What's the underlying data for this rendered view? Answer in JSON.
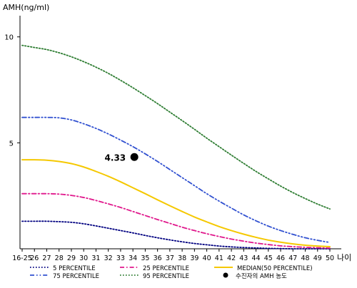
{
  "chart_data": {
    "type": "line",
    "ylabel": "AMH(ng/ml)",
    "xlabel": "나이",
    "x": [
      "16-25",
      "26",
      "27",
      "28",
      "29",
      "30",
      "31",
      "32",
      "33",
      "34",
      "35",
      "36",
      "37",
      "38",
      "39",
      "40",
      "41",
      "42",
      "43",
      "44",
      "45",
      "46",
      "47",
      "48",
      "49",
      "50"
    ],
    "y_ticks": [
      5,
      10
    ],
    "ylim": [
      0,
      11
    ],
    "grid": false,
    "legend_position": "bottom",
    "series": [
      {
        "name": "5 PERCENTILE",
        "color": "#000080",
        "dash": "dotted",
        "values": [
          1.3,
          1.3,
          1.3,
          1.28,
          1.25,
          1.18,
          1.08,
          0.97,
          0.86,
          0.75,
          0.63,
          0.52,
          0.42,
          0.33,
          0.25,
          0.19,
          0.13,
          0.09,
          0.06,
          0.04,
          0.02,
          0.01,
          0.0,
          0.0,
          0.0,
          0.0
        ]
      },
      {
        "name": "25 PERCENTILE",
        "color": "#e0188c",
        "dash": "dashdot",
        "values": [
          2.6,
          2.6,
          2.6,
          2.58,
          2.52,
          2.42,
          2.28,
          2.12,
          1.95,
          1.76,
          1.57,
          1.38,
          1.2,
          1.02,
          0.86,
          0.71,
          0.58,
          0.46,
          0.36,
          0.27,
          0.2,
          0.14,
          0.1,
          0.07,
          0.05,
          0.03
        ]
      },
      {
        "name": "MEDIAN(50 PERCENTILE)",
        "color": "#f5c800",
        "dash": "solid",
        "values": [
          4.2,
          4.2,
          4.18,
          4.12,
          4.02,
          3.86,
          3.65,
          3.42,
          3.16,
          2.88,
          2.6,
          2.31,
          2.03,
          1.76,
          1.5,
          1.27,
          1.05,
          0.86,
          0.69,
          0.54,
          0.41,
          0.31,
          0.23,
          0.17,
          0.13,
          0.1
        ]
      },
      {
        "name": "75 PERCENTILE",
        "color": "#3050d0",
        "dash": "dashdotdot",
        "values": [
          6.2,
          6.2,
          6.2,
          6.18,
          6.08,
          5.9,
          5.68,
          5.42,
          5.13,
          4.82,
          4.48,
          4.12,
          3.74,
          3.36,
          2.98,
          2.6,
          2.25,
          1.92,
          1.6,
          1.32,
          1.07,
          0.86,
          0.68,
          0.52,
          0.4,
          0.3
        ]
      },
      {
        "name": "95 PERCENTILE",
        "color": "#2e7d32",
        "dash": "dotted",
        "values": [
          9.6,
          9.5,
          9.4,
          9.25,
          9.06,
          8.83,
          8.57,
          8.28,
          7.95,
          7.6,
          7.23,
          6.85,
          6.45,
          6.05,
          5.64,
          5.22,
          4.82,
          4.42,
          4.03,
          3.65,
          3.3,
          2.96,
          2.65,
          2.37,
          2.11,
          1.88
        ]
      }
    ],
    "marker": {
      "name": "수진자의 AMH 농도",
      "x": "34",
      "y": 4.33,
      "label": "4.33",
      "color": "#000000"
    }
  }
}
